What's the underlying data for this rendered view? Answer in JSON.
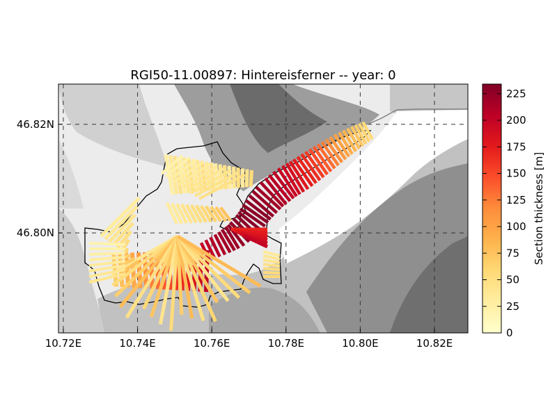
{
  "title": "RGI50-11.00897: Hintereisferner -- year: 0",
  "map": {
    "x_ticks": [
      {
        "value": 10.72,
        "label": "10.72E"
      },
      {
        "value": 10.74,
        "label": "10.74E"
      },
      {
        "value": 10.76,
        "label": "10.76E"
      },
      {
        "value": 10.78,
        "label": "10.78E"
      },
      {
        "value": 10.8,
        "label": "10.80E"
      },
      {
        "value": 10.82,
        "label": "10.82E"
      }
    ],
    "y_ticks": [
      {
        "value": 46.8,
        "label": "46.80N"
      },
      {
        "value": 46.82,
        "label": "46.82N"
      }
    ],
    "lon_range": [
      10.7187,
      10.829
    ],
    "lat_range": [
      46.7816,
      46.8274
    ],
    "grid": true,
    "background": "hillshade (grayscale)"
  },
  "colorbar": {
    "label": "Section thickness [m]",
    "ticks": [
      "0",
      "25",
      "50",
      "75",
      "100",
      "125",
      "150",
      "175",
      "200",
      "225"
    ],
    "range": [
      0,
      234
    ],
    "colormap": "YlOrRd",
    "stops": [
      "#ffffcc",
      "#ffeda0",
      "#fed976",
      "#feb24c",
      "#fd8d3c",
      "#fc4e2a",
      "#e31a1c",
      "#bd0026",
      "#800026"
    ]
  }
}
